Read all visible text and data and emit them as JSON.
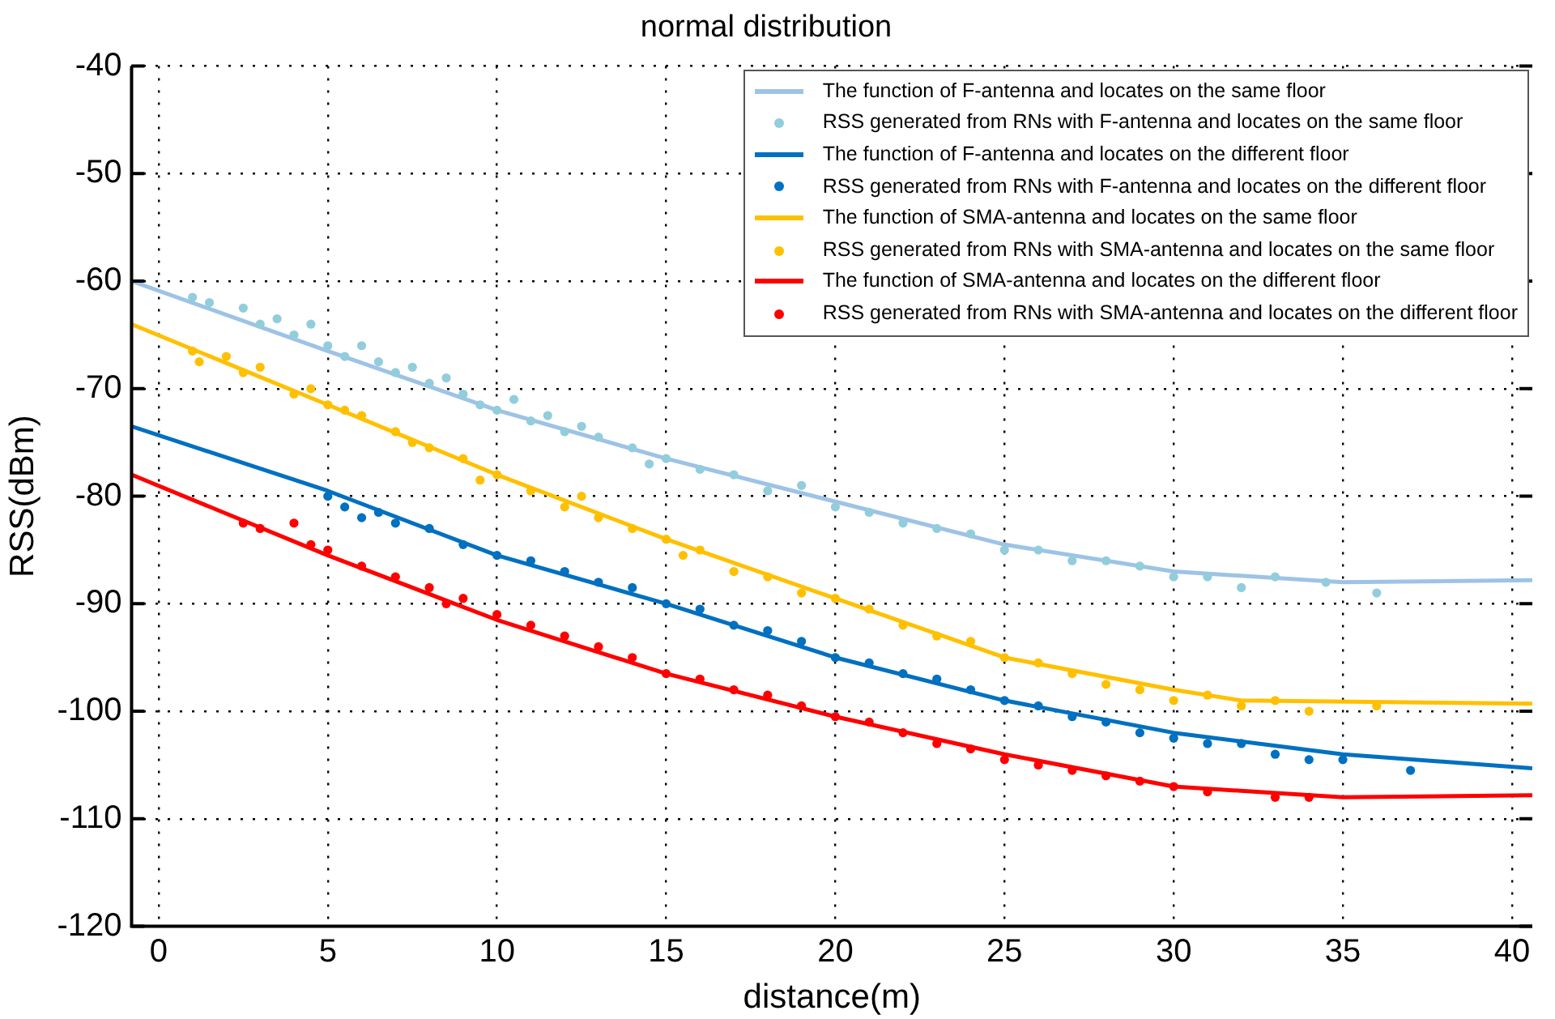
{
  "chart_data": {
    "type": "scatter",
    "title": "normal distribution",
    "xlabel": "distance(m)",
    "ylabel": "RSS(dBm)",
    "xlim": [
      -0.8,
      40.6
    ],
    "xticks": [
      0,
      5,
      10,
      15,
      20,
      25,
      30,
      35,
      40
    ],
    "ylim": [
      -120,
      -40
    ],
    "yticks": [
      -120,
      -110,
      -100,
      -90,
      -80,
      -70,
      -60,
      -50,
      -40
    ],
    "grid": true,
    "legend": "top right",
    "series": [
      {
        "name": "The function of F-antenna and locates on the same floor",
        "type": "line",
        "color": "#9dc3e6",
        "x": [
          -0.8,
          5,
          10,
          15,
          20,
          25,
          30,
          35,
          40.6
        ],
        "values": [
          -60,
          -66.5,
          -72,
          -76.5,
          -80.5,
          -84.5,
          -87,
          -88,
          -87.8
        ]
      },
      {
        "name": "RSS generated from RNs with F-antenna and locates on the same floor",
        "type": "scatter",
        "marker": "circle",
        "color": "#92cddc",
        "x": [
          1,
          1.5,
          2.5,
          3,
          3.5,
          4,
          4.5,
          5,
          5.5,
          6,
          6.5,
          7,
          7.5,
          8,
          8.5,
          9,
          9.5,
          10,
          10.5,
          11,
          11.5,
          12,
          12.5,
          13,
          14,
          14.5,
          15,
          16,
          17,
          18,
          19,
          20,
          21,
          22,
          23,
          24,
          25,
          26,
          27,
          28,
          29,
          30,
          31,
          32,
          33,
          34.5,
          36
        ],
        "values": [
          -61.5,
          -62,
          -62.5,
          -64,
          -63.5,
          -65,
          -64,
          -66,
          -67,
          -66,
          -67.5,
          -68.5,
          -68,
          -69.5,
          -69,
          -70.5,
          -71.5,
          -72,
          -71,
          -73,
          -72.5,
          -74,
          -73.5,
          -74.5,
          -75.5,
          -77,
          -76.5,
          -77.5,
          -78,
          -79.5,
          -79,
          -81,
          -81.5,
          -82.5,
          -83,
          -83.5,
          -85,
          -85,
          -86,
          -86,
          -86.5,
          -87.5,
          -87.5,
          -88.5,
          -87.5,
          -88,
          -89
        ]
      },
      {
        "name": "The function of F-antenna and locates on the different floor",
        "type": "line",
        "color": "#0070c0",
        "x": [
          -0.8,
          5,
          10,
          15,
          20,
          25,
          30,
          35,
          40.6
        ],
        "values": [
          -73.5,
          -79.5,
          -85.5,
          -90,
          -95,
          -99,
          -102,
          -104,
          -105.3
        ]
      },
      {
        "name": "RSS generated from RNs with F-antenna and locates on the different floor",
        "type": "scatter",
        "marker": "circle",
        "color": "#0070c0",
        "x": [
          5,
          5.5,
          6,
          6.5,
          7,
          8,
          9,
          10,
          11,
          12,
          13,
          14,
          15,
          16,
          17,
          18,
          19,
          20,
          21,
          22,
          23,
          24,
          25,
          26,
          27,
          28,
          29,
          30,
          31,
          32,
          33,
          34,
          35,
          37
        ],
        "values": [
          -80,
          -81,
          -82,
          -81.5,
          -82.5,
          -83,
          -84.5,
          -85.5,
          -86,
          -87,
          -88,
          -88.5,
          -90,
          -90.5,
          -92,
          -92.5,
          -93.5,
          -95,
          -95.5,
          -96.5,
          -97,
          -98,
          -99,
          -99.5,
          -100.5,
          -101,
          -102,
          -102.5,
          -103,
          -103,
          -104,
          -104.5,
          -104.5,
          -105.5
        ]
      },
      {
        "name": "The function of SMA-antenna and locates on the same floor",
        "type": "line",
        "color": "#ffc000",
        "x": [
          -0.8,
          5,
          10,
          15,
          20,
          25,
          30,
          32,
          40.6
        ],
        "values": [
          -64,
          -71.5,
          -78,
          -84,
          -89.5,
          -95,
          -98,
          -99,
          -99.3
        ]
      },
      {
        "name": "RSS generated from RNs with SMA-antenna and locates on the same floor",
        "type": "scatter",
        "marker": "circle",
        "color": "#ffc000",
        "x": [
          1,
          1.2,
          2,
          2.5,
          3,
          4,
          4.5,
          5,
          5.5,
          6,
          7,
          7.5,
          8,
          9,
          9.5,
          10,
          11,
          12,
          12.5,
          13,
          14,
          15,
          15.5,
          16,
          17,
          18,
          19,
          20,
          21,
          22,
          23,
          24,
          25,
          26,
          27,
          28,
          29,
          30,
          31,
          32,
          33,
          34,
          36
        ],
        "values": [
          -66.5,
          -67.5,
          -67,
          -68.5,
          -68,
          -70.5,
          -70,
          -71.5,
          -72,
          -72.5,
          -74,
          -75,
          -75.5,
          -76.5,
          -78.5,
          -78,
          -79.5,
          -81,
          -80,
          -82,
          -83,
          -84,
          -85.5,
          -85,
          -87,
          -87.5,
          -89,
          -89.5,
          -90.5,
          -92,
          -93,
          -93.5,
          -95,
          -95.5,
          -96.5,
          -97.5,
          -98,
          -99,
          -98.5,
          -99.5,
          -99,
          -100,
          -99.5
        ]
      },
      {
        "name": "The function of SMA-antenna and locates on the different floor",
        "type": "line",
        "color": "#ff0000",
        "x": [
          -0.8,
          5,
          10,
          15,
          20,
          25,
          30,
          35,
          40.6
        ],
        "values": [
          -78,
          -85.5,
          -91.5,
          -96.5,
          -100.5,
          -104,
          -107,
          -108,
          -107.8
        ]
      },
      {
        "name": "RSS generated from RNs with SMA-antenna and locates on the different floor",
        "type": "scatter",
        "marker": "circle",
        "color": "#ff0000",
        "x": [
          2.5,
          3,
          4,
          4.5,
          5,
          6,
          7,
          8,
          8.5,
          9,
          10,
          11,
          12,
          13,
          14,
          15,
          16,
          17,
          18,
          19,
          20,
          21,
          22,
          23,
          24,
          25,
          26,
          27,
          28,
          29,
          30,
          31,
          33,
          34
        ],
        "values": [
          -82.5,
          -83,
          -82.5,
          -84.5,
          -85,
          -86.5,
          -87.5,
          -88.5,
          -90,
          -89.5,
          -91,
          -92,
          -93,
          -94,
          -95,
          -96.5,
          -97,
          -98,
          -98.5,
          -99.5,
          -100.5,
          -101,
          -102,
          -103,
          -103.5,
          -104.5,
          -105,
          -105.5,
          -106,
          -106.5,
          -107,
          -107.5,
          -108,
          -108
        ]
      }
    ]
  }
}
